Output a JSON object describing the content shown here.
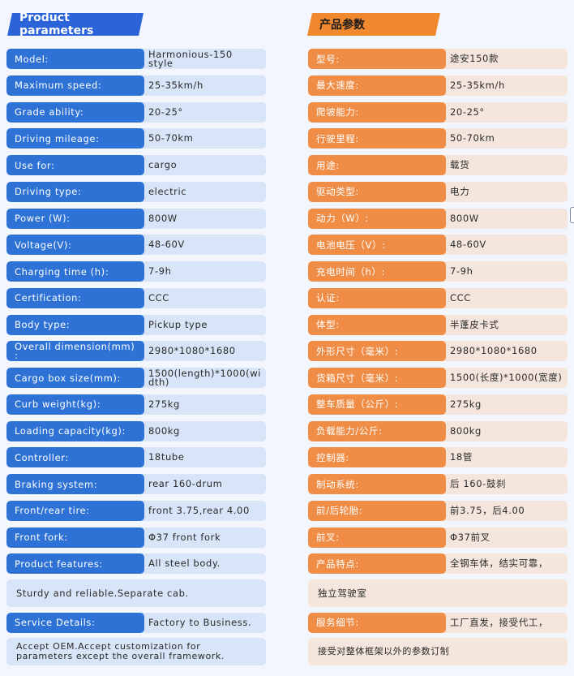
{
  "en": {
    "title": "Product parameters",
    "rows": [
      {
        "label": "Model:",
        "value": "Harmonious-150\nstyle"
      },
      {
        "label": "Maximum speed:",
        "value": "25-35km/h"
      },
      {
        "label": "Grade ability:",
        "value": "20-25°"
      },
      {
        "label": "Driving mileage:",
        "value": "50-70km"
      },
      {
        "label": "Use for:",
        "value": "cargo"
      },
      {
        "label": "Driving type:",
        "value": "electric"
      },
      {
        "label": "Power (W):",
        "value": "800W"
      },
      {
        "label": "Voltage(V):",
        "value": "48-60V"
      },
      {
        "label": "Charging time (h):",
        "value": "7-9h"
      },
      {
        "label": "Certification:",
        "value": "CCC"
      },
      {
        "label": "Body type:",
        "value": "Pickup type"
      },
      {
        "label": "Overall dimension(mm)\n:",
        "value": "2980*1080*1680"
      },
      {
        "label": "Cargo box size(mm):",
        "value": "1500(length)*1000(wi\ndth)"
      },
      {
        "label": "Curb weight(kg):",
        "value": "275kg"
      },
      {
        "label": "Loading capacity(kg):",
        "value": "800kg"
      },
      {
        "label": "Controller:",
        "value": "18tube"
      },
      {
        "label": "Braking system:",
        "value": "rear 160-drum"
      },
      {
        "label": "Front/rear tire:",
        "value": "front 3.75,rear 4.00"
      },
      {
        "label": "Front fork:",
        "value": "Φ37 front fork"
      },
      {
        "label": "Product features:",
        "value": "All steel body."
      }
    ],
    "features_cont": "Sturdy and reliable.Separate cab.",
    "service_label": "Service Details:",
    "service_value": "Factory to Business.",
    "service_cont": "Accept OEM.Accept customization for\nparameters except the overall framework."
  },
  "zh": {
    "title": "产品参数",
    "rows": [
      {
        "label": "型号:",
        "value": "途安150款"
      },
      {
        "label": "最大速度:",
        "value": "25-35km/h"
      },
      {
        "label": "爬坡能力:",
        "value": "20-25°"
      },
      {
        "label": "行驶里程:",
        "value": "50-70km"
      },
      {
        "label": "用途:",
        "value": "载货"
      },
      {
        "label": "驱动类型:",
        "value": "电力"
      },
      {
        "label": "动力（W）:",
        "value": "800W"
      },
      {
        "label": "电池电压（V）:",
        "value": "48-60V"
      },
      {
        "label": "充电时间（h）:",
        "value": "7-9h"
      },
      {
        "label": "认证:",
        "value": "CCC"
      },
      {
        "label": "体型:",
        "value": "半蓬皮卡式"
      },
      {
        "label": "外形尺寸（毫米）:",
        "value": "2980*1080*1680"
      },
      {
        "label": "货箱尺寸（毫米）:",
        "value": "1500(长度)*1000(宽度)"
      },
      {
        "label": "整车质量（公斤）:",
        "value": "275kg"
      },
      {
        "label": "负载能力/公斤:",
        "value": "800kg"
      },
      {
        "label": "控制器:",
        "value": "18管"
      },
      {
        "label": "制动系统:",
        "value": "后 160-鼓刹"
      },
      {
        "label": "前/后轮胎:",
        "value": "前3.75，后4.00"
      },
      {
        "label": "前叉:",
        "value": "Φ37前叉"
      },
      {
        "label": "产品特点:",
        "value": "全钢车体，结实可靠，"
      }
    ],
    "features_cont": "独立驾驶室",
    "service_label": "服务细节:",
    "service_value": "工厂直发，接受代工，",
    "service_cont": "接受对整体框架以外的参数订制"
  },
  "colors": {
    "en_label_bg": "#2e72d6",
    "en_value_bg": "#d8e4f7",
    "zh_label_bg": "#ef8d47",
    "zh_value_bg": "#f4e6dd",
    "en_title_bg": "#2a64d8",
    "zh_title_bg": "#f0892e"
  }
}
